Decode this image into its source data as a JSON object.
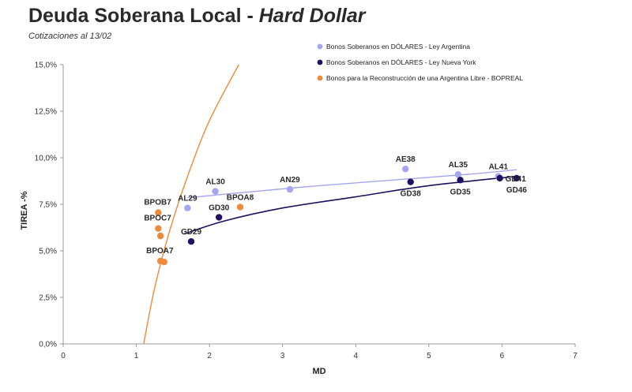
{
  "title_main": "Deuda Soberana Local - ",
  "title_italic": "Hard Dollar",
  "subtitle": "Cotizaciones al 13/02",
  "chart_data": {
    "type": "scatter",
    "xlabel": "MD",
    "ylabel": "TIREA -%",
    "xlim": [
      0,
      7
    ],
    "ylim": [
      0,
      15
    ],
    "x_ticks": [
      "0",
      "1",
      "2",
      "3",
      "4",
      "5",
      "6",
      "7"
    ],
    "y_ticks": [
      "0,0%",
      "2,5%",
      "5,0%",
      "7,5%",
      "10,0%",
      "12,5%",
      "15,0%"
    ],
    "legend_position": "top-right",
    "colors": {
      "ley_argentina": "#a6a6f0",
      "ley_nueva_york": "#1f1060",
      "bopreal": "#ee8a3c"
    },
    "series": [
      {
        "name": "Bonos Soberanos en DÓLARES - Ley Argentina",
        "color_key": "ley_argentina",
        "points": [
          {
            "label": "AL29",
            "x": 1.7,
            "y": 7.3
          },
          {
            "label": "AL30",
            "x": 2.08,
            "y": 8.2
          },
          {
            "label": "AN29",
            "x": 3.1,
            "y": 8.3
          },
          {
            "label": "AE38",
            "x": 4.68,
            "y": 9.4
          },
          {
            "label": "AL35",
            "x": 5.4,
            "y": 9.1
          },
          {
            "label": "AL41",
            "x": 5.95,
            "y": 9.0
          }
        ],
        "trend": [
          [
            1.7,
            7.85
          ],
          [
            2.5,
            8.15
          ],
          [
            3.5,
            8.5
          ],
          [
            4.5,
            8.8
          ],
          [
            5.5,
            9.1
          ],
          [
            6.2,
            9.35
          ]
        ]
      },
      {
        "name": "Bonos Soberanos en DÓLARES - Ley Nueva York",
        "color_key": "ley_nueva_york",
        "points": [
          {
            "label": "GD29",
            "x": 1.75,
            "y": 5.5
          },
          {
            "label": "GD30",
            "x": 2.13,
            "y": 6.8
          },
          {
            "label": "GD38",
            "x": 4.75,
            "y": 8.7
          },
          {
            "label": "GD35",
            "x": 5.43,
            "y": 8.8
          },
          {
            "label": "GD41",
            "x": 5.97,
            "y": 8.9
          },
          {
            "label": "GD46",
            "x": 6.2,
            "y": 8.9
          }
        ],
        "trend": [
          [
            1.65,
            5.9
          ],
          [
            2.2,
            6.6
          ],
          [
            3.0,
            7.3
          ],
          [
            4.0,
            7.9
          ],
          [
            5.0,
            8.5
          ],
          [
            6.2,
            9.0
          ]
        ]
      },
      {
        "name": "Bonos para la Reconstrucción de una Argentina Libre - BOPREAL",
        "color_key": "bopreal",
        "points": [
          {
            "label": "BPOB7",
            "x": 1.3,
            "y": 7.05
          },
          {
            "label": "BPOC7",
            "x": 1.3,
            "y": 6.2
          },
          {
            "label": "",
            "x": 1.33,
            "y": 5.8
          },
          {
            "label": "BPOA7",
            "x": 1.33,
            "y": 4.45
          },
          {
            "label": "",
            "x": 1.38,
            "y": 4.4
          },
          {
            "label": "BPOA8",
            "x": 2.42,
            "y": 7.35
          }
        ],
        "trend": [
          [
            1.1,
            0
          ],
          [
            1.25,
            3
          ],
          [
            1.45,
            6
          ],
          [
            1.7,
            9
          ],
          [
            2.0,
            12
          ],
          [
            2.4,
            15
          ]
        ]
      }
    ],
    "label_placement": {
      "AL29": "above",
      "AL30": "above",
      "AN29": "above",
      "AE38": "above",
      "AL35": "above",
      "AL41": "above",
      "GD29": "above",
      "GD30": "above",
      "GD38": "below",
      "GD35": "below",
      "GD41": "right",
      "GD46": "below",
      "BPOB7": "right",
      "BPOC7": "right",
      "BPOA7": "right",
      "BPOA8": "above"
    }
  }
}
